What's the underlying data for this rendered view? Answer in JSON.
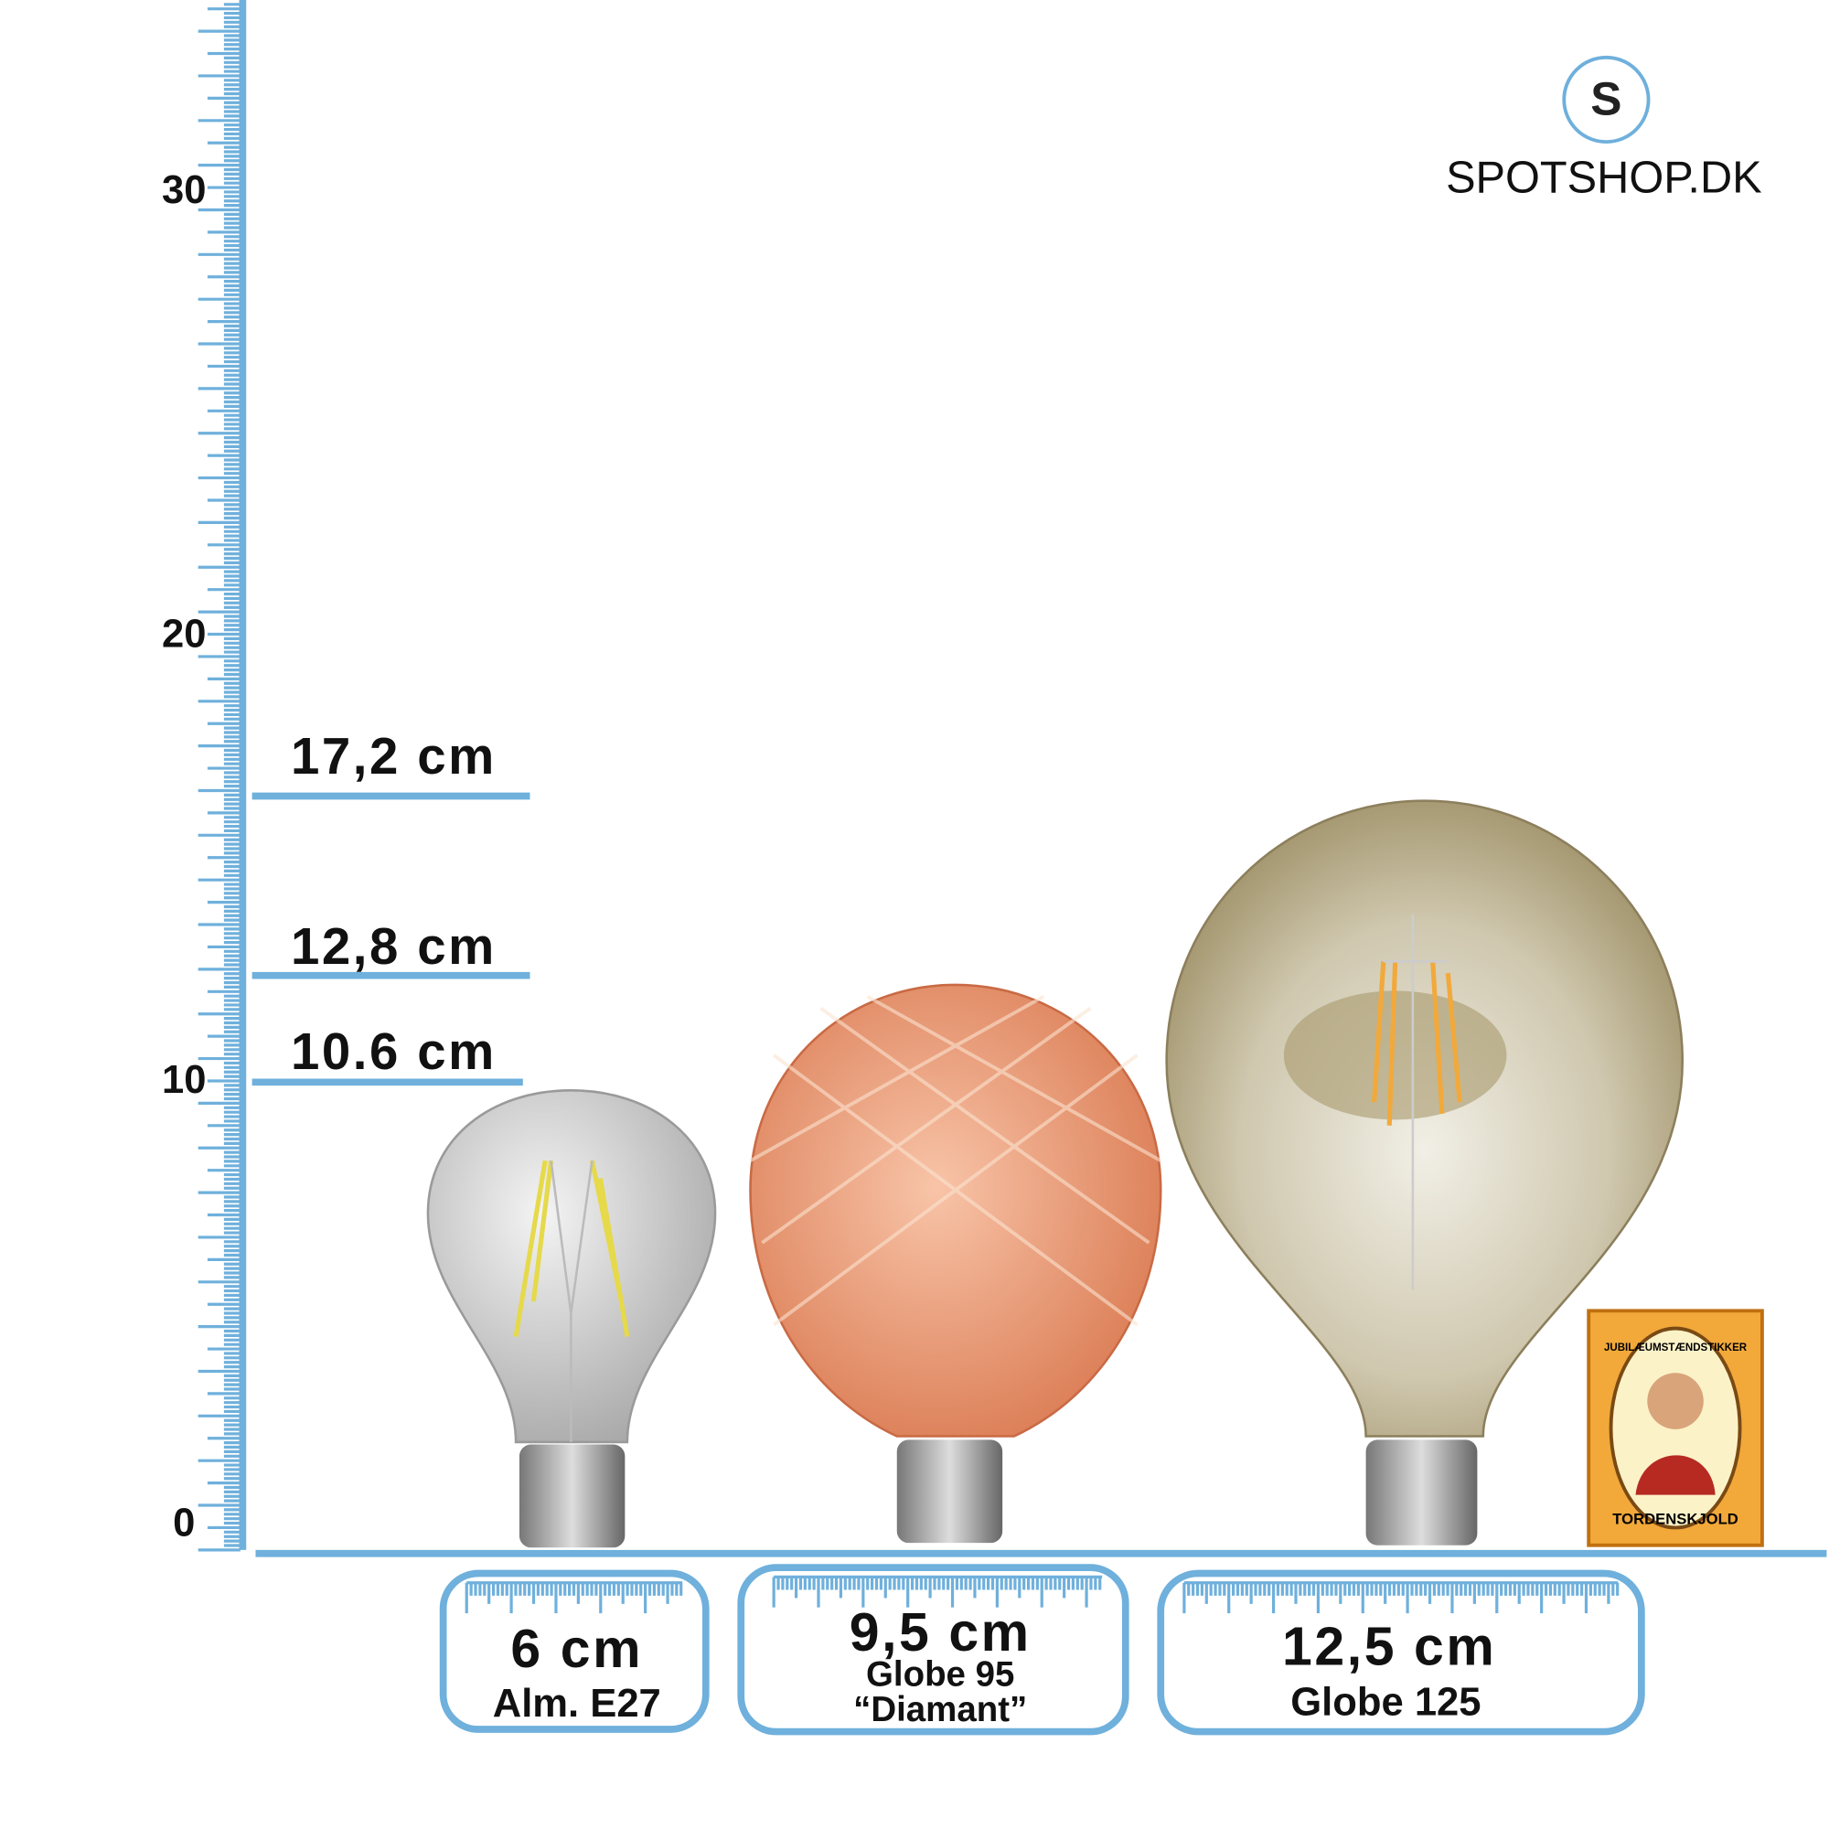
{
  "logo": {
    "letter": "S",
    "name": "SPOTSHOP.DK"
  },
  "ruler": {
    "labels": [
      "0",
      "10",
      "20",
      "30"
    ]
  },
  "heights": [
    "17,2 cm",
    "12,8 cm",
    "10.6 cm"
  ],
  "bulbs": [
    {
      "width": "6 cm",
      "lines": [
        "Alm. E27"
      ]
    },
    {
      "width": "9,5 cm",
      "lines": [
        "Globe 95",
        "“Diamant”"
      ]
    },
    {
      "width": "12,5 cm",
      "lines": [
        "Globe 125"
      ]
    }
  ],
  "matchbox": {
    "top": "JUBILÆUMSTÆNDSTIKKER",
    "bottom": "TORDENSKJOLD"
  }
}
